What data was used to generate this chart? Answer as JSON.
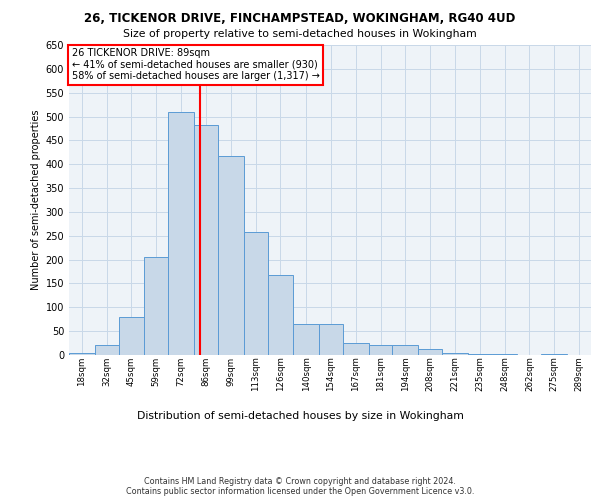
{
  "title1": "26, TICKENOR DRIVE, FINCHAMPSTEAD, WOKINGHAM, RG40 4UD",
  "title2": "Size of property relative to semi-detached houses in Wokingham",
  "xlabel": "Distribution of semi-detached houses by size in Wokingham",
  "ylabel": "Number of semi-detached properties",
  "footnote": "Contains HM Land Registry data © Crown copyright and database right 2024.\nContains public sector information licensed under the Open Government Licence v3.0.",
  "annotation_title": "26 TICKENOR DRIVE: 89sqm",
  "annotation_line1": "← 41% of semi-detached houses are smaller (930)",
  "annotation_line2": "58% of semi-detached houses are larger (1,317) →",
  "property_size": 89,
  "bar_left_edges": [
    18,
    32,
    45,
    59,
    72,
    86,
    99,
    113,
    126,
    140,
    154,
    167,
    181,
    194,
    208,
    221,
    235,
    248,
    262,
    275,
    289
  ],
  "bar_widths": [
    14,
    13,
    14,
    13,
    14,
    13,
    14,
    13,
    14,
    14,
    13,
    14,
    13,
    14,
    13,
    14,
    13,
    14,
    13,
    14,
    13
  ],
  "bar_heights": [
    5,
    20,
    80,
    205,
    510,
    483,
    417,
    258,
    168,
    65,
    65,
    25,
    20,
    20,
    12,
    5,
    3,
    2,
    1,
    2,
    1
  ],
  "bar_color": "#c8d8e8",
  "bar_edge_color": "#5b9bd5",
  "vline_x": 89,
  "vline_color": "red",
  "grid_color": "#c8d8e8",
  "bg_color": "#eef3f8",
  "ylim": [
    0,
    650
  ],
  "yticks": [
    0,
    50,
    100,
    150,
    200,
    250,
    300,
    350,
    400,
    450,
    500,
    550,
    600,
    650
  ]
}
